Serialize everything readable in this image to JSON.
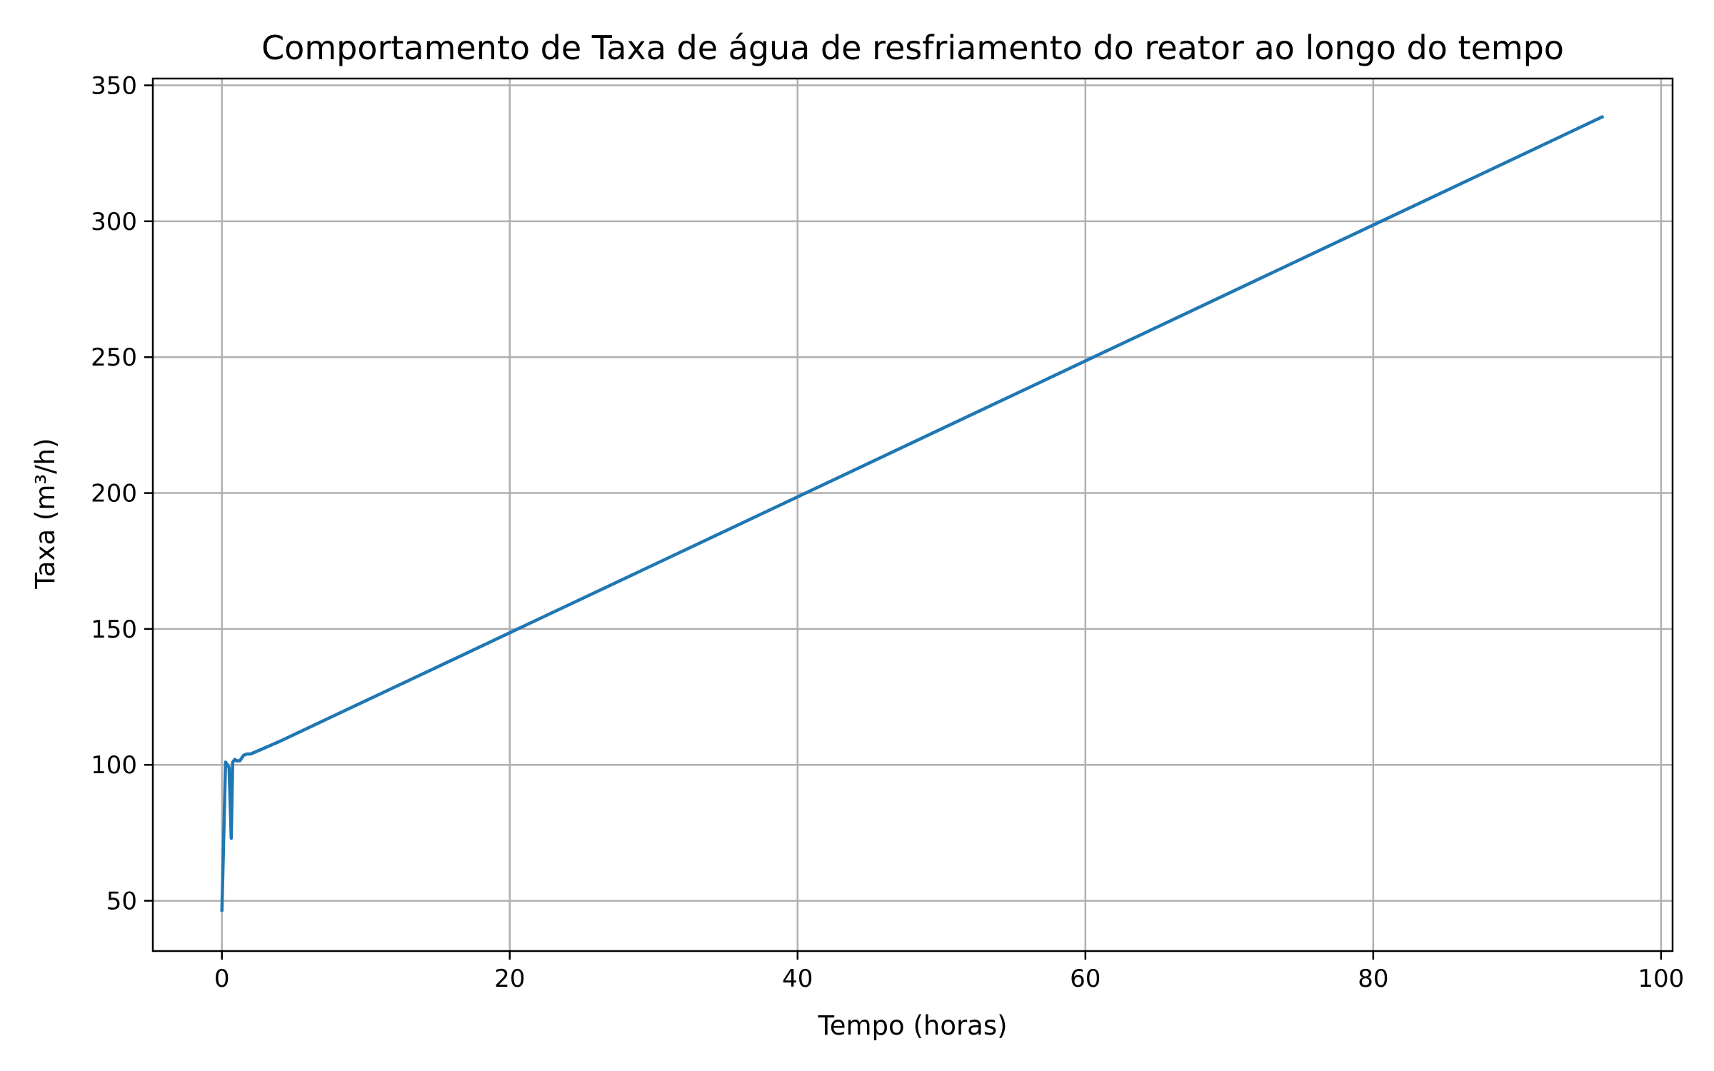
{
  "chart_data": {
    "type": "line",
    "title": "Comportamento de Taxa de água de resfriamento do reator ao longo do tempo",
    "xlabel": "Tempo (horas)",
    "ylabel": "Taxa (m³/h)",
    "xlim": [
      -4.8,
      100.8
    ],
    "ylim": [
      31.5,
      352.5
    ],
    "xticks": [
      0,
      20,
      40,
      60,
      80,
      100
    ],
    "yticks": [
      50,
      100,
      150,
      200,
      250,
      300,
      350
    ],
    "grid": true,
    "legend": "none",
    "series": [
      {
        "color": "#1f77b4",
        "x": [
          0,
          0.25,
          0.5,
          0.65,
          0.75,
          0.9,
          1.0,
          1.25,
          1.5,
          1.75,
          2,
          4,
          8,
          12,
          16,
          20,
          24,
          32,
          40,
          48,
          56,
          60,
          64,
          72,
          80,
          88,
          96
        ],
        "y": [
          46,
          101,
          99,
          73,
          101,
          102,
          101.5,
          101.5,
          103.5,
          104,
          104,
          108.6,
          118.6,
          128.6,
          138.6,
          148.6,
          158.6,
          178.6,
          198.6,
          218.6,
          238.6,
          248.6,
          258.6,
          278.6,
          298.6,
          318.6,
          338.6
        ]
      }
    ]
  }
}
